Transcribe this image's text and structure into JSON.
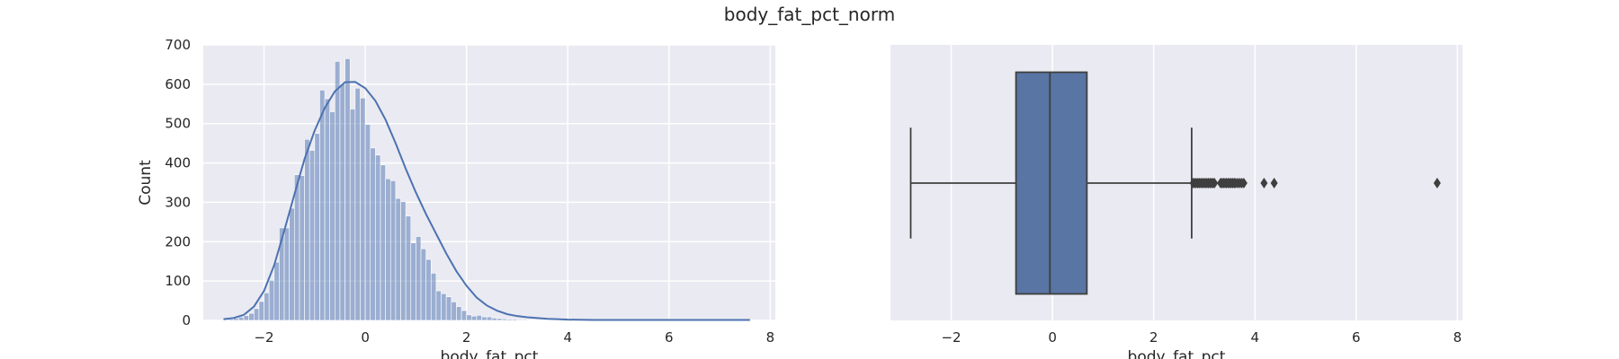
{
  "figure": {
    "suptitle": "body_fat_pct_norm"
  },
  "colors": {
    "panel_bg": "#EAEAF2",
    "grid": "#FFFFFF",
    "hist_fill": "#4C72B0",
    "box_fill": "#5975A4",
    "box_line": "#3F3F3F",
    "text": "#262626"
  },
  "chart_data": [
    {
      "type": "bar",
      "subtype": "histogram_with_kde",
      "xlabel": "body_fat_pct",
      "ylabel": "Count",
      "xlim": [
        -3.2,
        8.1
      ],
      "ylim": [
        0,
        700
      ],
      "xticks": [
        -2,
        0,
        2,
        4,
        6,
        8
      ],
      "xtick_labels": [
        "−2",
        "0",
        "2",
        "4",
        "6",
        "8"
      ],
      "yticks": [
        0,
        100,
        200,
        300,
        400,
        500,
        600,
        700
      ],
      "ytick_labels": [
        "0",
        "100",
        "200",
        "300",
        "400",
        "500",
        "600",
        "700"
      ],
      "grid": true,
      "bin_width": 0.1,
      "bin_start": -2.8,
      "values": [
        2,
        3,
        5,
        8,
        12,
        18,
        30,
        48,
        70,
        102,
        148,
        235,
        235,
        285,
        370,
        368,
        460,
        432,
        475,
        585,
        563,
        530,
        658,
        600,
        665,
        537,
        590,
        565,
        498,
        438,
        420,
        395,
        360,
        355,
        310,
        302,
        265,
        197,
        213,
        182,
        155,
        120,
        75,
        68,
        60,
        47,
        35,
        25,
        14,
        11,
        13,
        9,
        9,
        6,
        5,
        4,
        3,
        3,
        2,
        2,
        1,
        1,
        1,
        1,
        0,
        0,
        0,
        1,
        0,
        0,
        0,
        1,
        0,
        0,
        0,
        0,
        0,
        0,
        0,
        0,
        0,
        0,
        0,
        0,
        0,
        0,
        0,
        0,
        0,
        0,
        0,
        0,
        0,
        0,
        0,
        0,
        0,
        0,
        0,
        0,
        0,
        0,
        1
      ],
      "kde": {
        "x": [
          -2.8,
          -2.6,
          -2.4,
          -2.2,
          -2.0,
          -1.8,
          -1.6,
          -1.4,
          -1.2,
          -1.0,
          -0.8,
          -0.6,
          -0.4,
          -0.2,
          0.0,
          0.2,
          0.4,
          0.6,
          0.8,
          1.0,
          1.2,
          1.4,
          1.6,
          1.8,
          2.0,
          2.2,
          2.4,
          2.6,
          2.8,
          3.0,
          3.2,
          3.4,
          3.6,
          3.8,
          4.0,
          4.5,
          5.0,
          5.5,
          6.0,
          6.5,
          7.0,
          7.6
        ],
        "y": [
          3,
          6,
          14,
          35,
          75,
          140,
          228,
          320,
          410,
          482,
          540,
          582,
          605,
          606,
          590,
          558,
          510,
          450,
          385,
          325,
          270,
          220,
          170,
          125,
          88,
          58,
          38,
          25,
          16,
          11,
          8,
          6,
          4,
          3,
          2,
          1,
          1,
          1,
          1,
          1,
          1,
          1
        ]
      }
    },
    {
      "type": "box",
      "xlabel": "body_fat_pct",
      "xlim": [
        -3.2,
        8.1
      ],
      "xticks": [
        -2,
        0,
        2,
        4,
        6,
        8
      ],
      "xtick_labels": [
        "−2",
        "0",
        "2",
        "4",
        "6",
        "8"
      ],
      "grid": true,
      "whisker_low": -2.8,
      "q1": -0.72,
      "median": -0.05,
      "q3": 0.68,
      "whisker_high": 2.75,
      "outliers": [
        2.78,
        2.81,
        2.84,
        2.87,
        2.9,
        2.93,
        2.96,
        2.99,
        3.02,
        3.05,
        3.08,
        3.11,
        3.14,
        3.17,
        3.2,
        3.32,
        3.35,
        3.38,
        3.41,
        3.44,
        3.47,
        3.5,
        3.53,
        3.56,
        3.59,
        3.62,
        3.66,
        3.7,
        3.74,
        3.78,
        4.18,
        4.38,
        7.6
      ]
    }
  ]
}
